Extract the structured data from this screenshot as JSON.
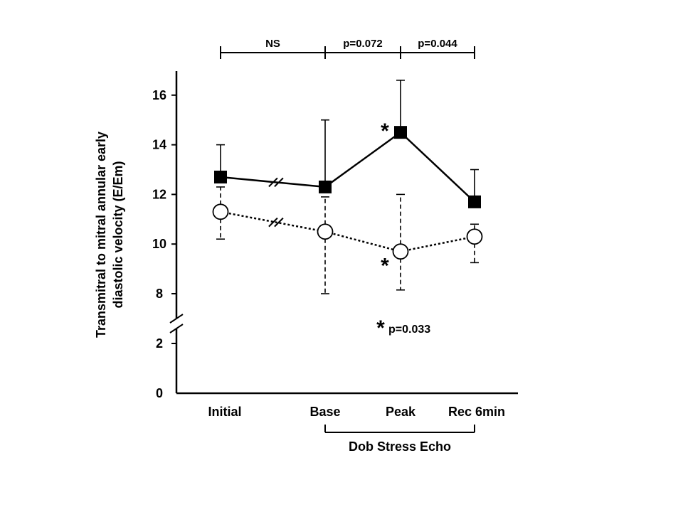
{
  "chart_data": {
    "type": "line",
    "categories": [
      "Initial",
      "Base",
      "Peak",
      "Rec 6min"
    ],
    "ylabel_lines": [
      "Transmitral to mitral annular early",
      "diastolic velocity (E/Em)"
    ],
    "xlabel": "",
    "yticks": [
      0,
      2,
      8,
      10,
      12,
      14,
      16
    ],
    "ylim": [
      0,
      17
    ],
    "axis_break_between": [
      2,
      8
    ],
    "grid": false,
    "legend": "none",
    "series": [
      {
        "marker": "filled-square",
        "line_style": "solid",
        "values": [
          12.7,
          12.3,
          14.5,
          11.7
        ],
        "err_upper": [
          14.0,
          15.0,
          16.6,
          13.0
        ],
        "err_lower": null,
        "err_style": "solid",
        "line_break_between": [
          0,
          1
        ]
      },
      {
        "marker": "open-circle",
        "line_style": "dotted",
        "values": [
          11.3,
          10.5,
          9.7,
          10.3
        ],
        "err_upper": [
          12.3,
          11.9,
          12.0,
          10.8
        ],
        "err_lower": [
          10.2,
          8.0,
          8.15,
          9.25
        ],
        "err_style": "dashed",
        "line_break_between": [
          0,
          1
        ]
      }
    ],
    "brackets": [
      {
        "from": 0,
        "to": 1,
        "label": "NS"
      },
      {
        "from": 1,
        "to": 2,
        "label": "p=0.072"
      },
      {
        "from": 2,
        "to": 3,
        "label": "p=0.044"
      }
    ],
    "group_bracket": {
      "from": 1,
      "to": 3,
      "label": "Dob Stress Echo"
    },
    "significance_markers": [
      {
        "category": 2,
        "series": 0,
        "symbol": "*"
      },
      {
        "category": 2,
        "series": 1,
        "symbol": "*"
      }
    ],
    "annotation": {
      "symbol": "*",
      "text": "p=0.033"
    }
  }
}
